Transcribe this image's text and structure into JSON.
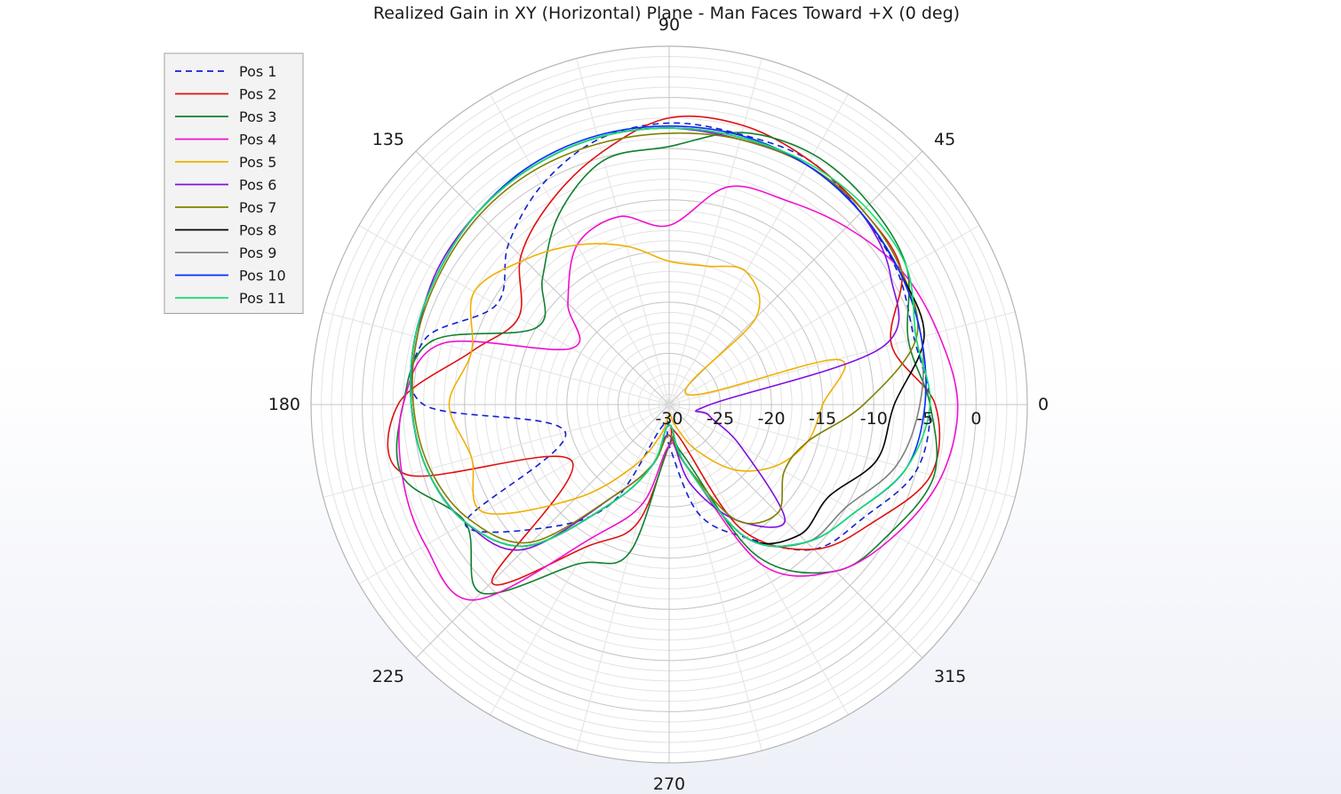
{
  "chart_data": {
    "type": "polar-line",
    "title": "Realized Gain in XY (Horizontal) Plane - Man Faces Toward +X (0 deg)",
    "angle_ticks": [
      0,
      45,
      90,
      135,
      180,
      225,
      270,
      315
    ],
    "angle_tick_labels": [
      "0",
      "45",
      "90",
      "135",
      "180",
      "225",
      "270",
      "315"
    ],
    "radial_ticks": [
      -30,
      -25,
      -20,
      -15,
      -10,
      -5,
      0
    ],
    "radial_tick_labels": [
      "-30",
      "-25",
      "-20",
      "-15",
      "-10",
      "-5",
      "0"
    ],
    "rlim": [
      -30,
      5
    ],
    "grid": true,
    "legend_position": "top-left",
    "series": [
      {
        "name": "Pos 1",
        "color": "#1020d0",
        "dash": true,
        "angles": [
          0,
          15,
          30,
          45,
          60,
          75,
          90,
          105,
          120,
          135,
          150,
          165,
          180,
          195,
          210,
          225,
          240,
          255,
          270,
          285,
          300,
          315,
          330,
          345
        ],
        "values": [
          -4.5,
          -5.2,
          -4.2,
          -3.5,
          -2.5,
          -2.7,
          -2.5,
          -3.2,
          -5.2,
          -7.8,
          -10.5,
          -5.3,
          -6.0,
          -19.5,
          -7.0,
          -13.0,
          -19.0,
          -28.0,
          -26.0,
          -19.0,
          -15.0,
          -10.0,
          -8.0,
          -5.0
        ]
      },
      {
        "name": "Pos 2",
        "color": "#e01010",
        "dash": false,
        "angles": [
          0,
          15,
          30,
          45,
          60,
          75,
          90,
          105,
          120,
          135,
          150,
          165,
          180,
          195,
          210,
          225,
          240,
          255,
          270,
          285,
          300,
          315,
          330,
          345
        ],
        "values": [
          -4.0,
          -7.5,
          -3.8,
          -3.2,
          -2.5,
          -1.8,
          -2.0,
          -4.5,
          -7.0,
          -9.5,
          -13.0,
          -10.0,
          -3.5,
          -3.5,
          -19.0,
          -5.5,
          -14.0,
          -18.0,
          -26.0,
          -27.0,
          -16.0,
          -10.0,
          -7.0,
          -3.5
        ]
      },
      {
        "name": "Pos 3",
        "color": "#108030",
        "dash": false,
        "angles": [
          0,
          15,
          30,
          45,
          60,
          75,
          90,
          105,
          120,
          135,
          150,
          165,
          180,
          195,
          210,
          225,
          240,
          255,
          270,
          285,
          300,
          315,
          330,
          345
        ],
        "values": [
          -4.5,
          -5.8,
          -3.2,
          -2.3,
          -1.8,
          -2.5,
          -4.8,
          -5.3,
          -8.5,
          -12.5,
          -15.0,
          -6.0,
          -4.0,
          -3.0,
          -7.0,
          -4.0,
          -12.0,
          -15.0,
          -26.0,
          -25.0,
          -13.0,
          -7.0,
          -5.0,
          -3.2
        ]
      },
      {
        "name": "Pos 4",
        "color": "#f010d0",
        "dash": false,
        "angles": [
          0,
          15,
          30,
          45,
          60,
          75,
          90,
          105,
          120,
          135,
          150,
          165,
          180,
          195,
          210,
          225,
          240,
          255,
          270,
          285,
          300,
          315,
          330,
          345
        ],
        "values": [
          -1.8,
          -2.8,
          -3.8,
          -5.5,
          -7.0,
          -8.0,
          -12.5,
          -11.0,
          -12.0,
          -16.0,
          -19.0,
          -7.0,
          -4.0,
          -3.0,
          -2.5,
          -3.0,
          -15.0,
          -20.0,
          -26.0,
          -24.0,
          -12.0,
          -7.0,
          -4.5,
          -2.5
        ]
      },
      {
        "name": "Pos 5",
        "color": "#f0b000",
        "dash": false,
        "angles": [
          0,
          15,
          30,
          45,
          60,
          75,
          90,
          105,
          120,
          135,
          150,
          165,
          180,
          195,
          210,
          225,
          240,
          255,
          270,
          285,
          300,
          315,
          330,
          345
        ],
        "values": [
          -15.0,
          -13.0,
          -28.0,
          -18.0,
          -15.0,
          -16.0,
          -16.0,
          -14.0,
          -12.0,
          -10.0,
          -8.0,
          -10.0,
          -8.5,
          -10.0,
          -9.0,
          -17.0,
          -23.0,
          -27.0,
          -29.0,
          -28.0,
          -25.0,
          -21.0,
          -18.0,
          -16.0
        ]
      },
      {
        "name": "Pos 6",
        "color": "#8010e0",
        "dash": false,
        "angles": [
          0,
          15,
          30,
          45,
          60,
          75,
          90,
          105,
          120,
          135,
          150,
          165,
          180,
          195,
          210,
          225,
          240,
          255,
          270,
          285,
          300,
          315,
          330,
          345
        ],
        "values": [
          -26.0,
          -8.5,
          -5.0,
          -3.5,
          -3.0,
          -3.2,
          -3.0,
          -3.0,
          -3.2,
          -3.5,
          -3.8,
          -4.5,
          -4.8,
          -5.5,
          -7.0,
          -10.0,
          -20.0,
          -24.0,
          -27.0,
          -22.0,
          -17.0,
          -14.0,
          -22.0,
          -26.0
        ]
      },
      {
        "name": "Pos 7",
        "color": "#808000",
        "dash": false,
        "angles": [
          0,
          15,
          30,
          45,
          60,
          75,
          90,
          105,
          120,
          135,
          150,
          165,
          180,
          195,
          210,
          225,
          240,
          255,
          270,
          285,
          300,
          315,
          330,
          345
        ],
        "values": [
          -11.0,
          -5.0,
          -3.8,
          -3.2,
          -3.0,
          -3.2,
          -3.5,
          -3.6,
          -3.6,
          -3.8,
          -4.2,
          -4.5,
          -5.0,
          -5.8,
          -7.5,
          -11.0,
          -20.0,
          -24.0,
          -27.0,
          -24.0,
          -17.0,
          -15.0,
          -17.0,
          -16.0
        ]
      },
      {
        "name": "Pos 8",
        "color": "#000000",
        "dash": false,
        "angles": [
          0,
          15,
          30,
          45,
          60,
          75,
          90,
          105,
          120,
          135,
          150,
          165,
          180,
          195,
          210,
          225,
          240,
          255,
          270,
          285,
          300,
          315,
          330,
          345
        ],
        "values": [
          -8.0,
          -4.2,
          -4.0,
          -3.5,
          -3.0,
          -3.0,
          -3.0,
          -3.0,
          -3.2,
          -3.5,
          -4.0,
          -4.3,
          -4.8,
          -5.5,
          -7.0,
          -10.5,
          -19.0,
          -24.0,
          -28.0,
          -24.0,
          -15.0,
          -12.0,
          -12.0,
          -9.0
        ]
      },
      {
        "name": "Pos 9",
        "color": "#808080",
        "dash": false,
        "angles": [
          0,
          15,
          30,
          45,
          60,
          75,
          90,
          105,
          120,
          135,
          150,
          165,
          180,
          195,
          210,
          225,
          240,
          255,
          270,
          285,
          300,
          315,
          330,
          345
        ],
        "values": [
          -5.5,
          -4.5,
          -4.0,
          -3.5,
          -3.0,
          -3.0,
          -3.0,
          -3.0,
          -3.2,
          -3.5,
          -4.0,
          -4.3,
          -4.8,
          -5.5,
          -7.0,
          -10.5,
          -19.0,
          -24.0,
          -28.0,
          -24.0,
          -15.0,
          -11.0,
          -10.0,
          -7.0
        ]
      },
      {
        "name": "Pos 10",
        "color": "#0030ff",
        "dash": false,
        "angles": [
          0,
          15,
          30,
          45,
          60,
          75,
          90,
          105,
          120,
          135,
          150,
          165,
          180,
          195,
          210,
          225,
          240,
          255,
          270,
          285,
          300,
          315,
          330,
          345
        ],
        "values": [
          -5.0,
          -4.5,
          -4.0,
          -3.5,
          -3.0,
          -2.8,
          -2.8,
          -2.8,
          -3.0,
          -3.5,
          -4.0,
          -4.3,
          -4.8,
          -5.5,
          -7.0,
          -10.5,
          -19.0,
          -24.0,
          -28.0,
          -24.0,
          -15.0,
          -11.0,
          -9.0,
          -6.0
        ]
      },
      {
        "name": "Pos 11",
        "color": "#10e070",
        "dash": false,
        "angles": [
          0,
          15,
          30,
          45,
          60,
          75,
          90,
          105,
          120,
          135,
          150,
          165,
          180,
          195,
          210,
          225,
          240,
          255,
          270,
          285,
          300,
          315,
          330,
          345
        ],
        "values": [
          -4.5,
          -5.0,
          -3.2,
          -2.8,
          -2.8,
          -3.0,
          -3.0,
          -3.0,
          -3.2,
          -3.5,
          -4.0,
          -4.3,
          -4.8,
          -5.5,
          -7.0,
          -10.5,
          -19.0,
          -24.0,
          -28.0,
          -24.0,
          -15.0,
          -11.0,
          -9.0,
          -6.0
        ]
      }
    ]
  }
}
